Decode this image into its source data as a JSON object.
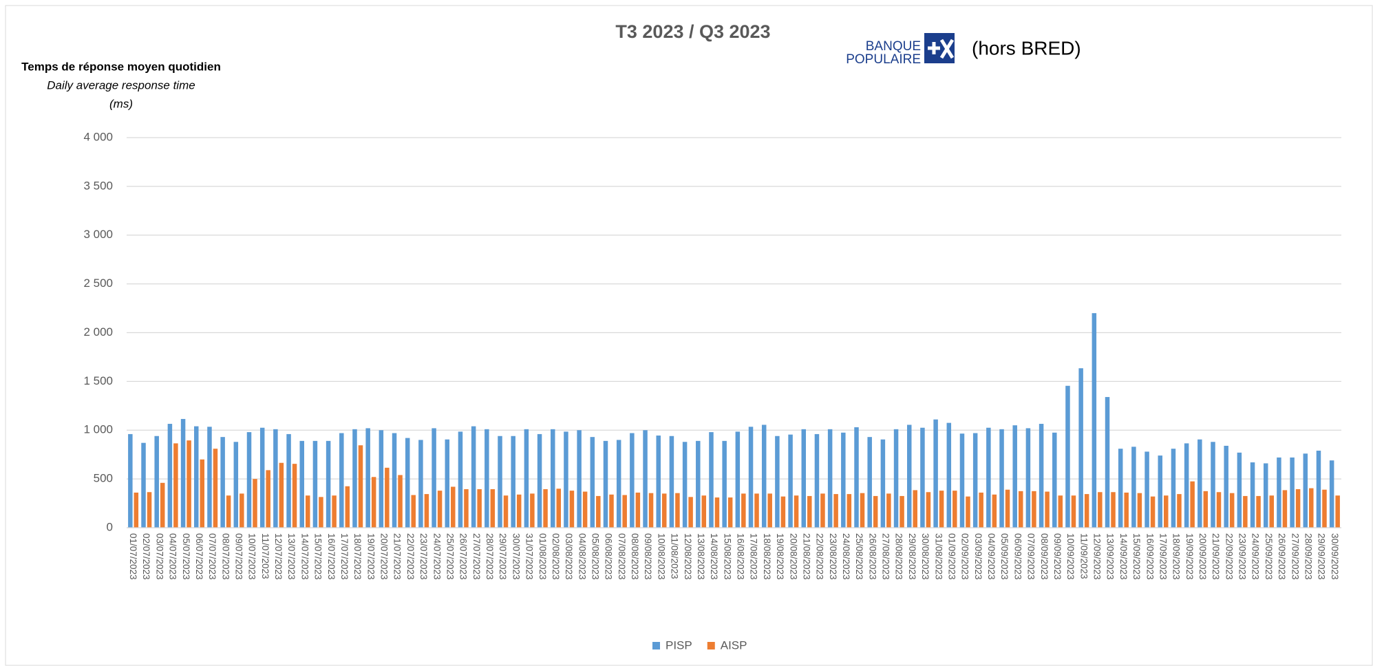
{
  "chart_data": {
    "type": "bar",
    "title": "T3 2023 / Q3 2023",
    "y_label": [
      "Temps de réponse moyen quotidien",
      "Daily average response time",
      "(ms)"
    ],
    "logo": {
      "line1": "BANQUE",
      "line2": "POPULAIRE"
    },
    "note": "(hors BRED)",
    "categories": [
      "01/07/2023",
      "02/07/2023",
      "03/07/2023",
      "04/07/2023",
      "05/07/2023",
      "06/07/2023",
      "07/07/2023",
      "08/07/2023",
      "09/07/2023",
      "10/07/2023",
      "11/07/2023",
      "12/07/2023",
      "13/07/2023",
      "14/07/2023",
      "15/07/2023",
      "16/07/2023",
      "17/07/2023",
      "18/07/2023",
      "19/07/2023",
      "20/07/2023",
      "21/07/2023",
      "22/07/2023",
      "23/07/2023",
      "24/07/2023",
      "25/07/2023",
      "26/07/2023",
      "27/07/2023",
      "28/07/2023",
      "29/07/2023",
      "30/07/2023",
      "31/07/2023",
      "01/08/2023",
      "02/08/2023",
      "03/08/2023",
      "04/08/2023",
      "05/08/2023",
      "06/08/2023",
      "07/08/2023",
      "08/08/2023",
      "09/08/2023",
      "10/08/2023",
      "11/08/2023",
      "12/08/2023",
      "13/08/2023",
      "14/08/2023",
      "15/08/2023",
      "16/08/2023",
      "17/08/2023",
      "18/08/2023",
      "19/08/2023",
      "20/08/2023",
      "21/08/2023",
      "22/08/2023",
      "23/08/2023",
      "24/08/2023",
      "25/08/2023",
      "26/08/2023",
      "27/08/2023",
      "28/08/2023",
      "29/08/2023",
      "30/08/2023",
      "31/08/2023",
      "01/09/2023",
      "02/09/2023",
      "03/09/2023",
      "04/09/2023",
      "05/09/2023",
      "06/09/2023",
      "07/09/2023",
      "08/09/2023",
      "09/09/2023",
      "10/09/2023",
      "11/09/2023",
      "12/09/2023",
      "13/09/2023",
      "14/09/2023",
      "15/09/2023",
      "16/09/2023",
      "17/09/2023",
      "18/09/2023",
      "19/09/2023",
      "20/09/2023",
      "21/09/2023",
      "22/09/2023",
      "23/09/2023",
      "24/09/2023",
      "25/09/2023",
      "26/09/2023",
      "27/09/2023",
      "28/09/2023",
      "29/09/2023",
      "30/09/2023"
    ],
    "series": [
      {
        "name": "PISP",
        "color": "#5b9bd5",
        "values": [
          960,
          870,
          940,
          1065,
          1115,
          1040,
          1035,
          930,
          880,
          980,
          1025,
          1010,
          960,
          890,
          890,
          890,
          970,
          1010,
          1020,
          1000,
          970,
          920,
          900,
          1020,
          905,
          985,
          1040,
          1010,
          940,
          940,
          1010,
          960,
          1010,
          985,
          1000,
          930,
          890,
          900,
          970,
          1000,
          945,
          940,
          880,
          890,
          980,
          890,
          985,
          1035,
          1055,
          940,
          955,
          1010,
          960,
          1010,
          975,
          1030,
          930,
          905,
          1010,
          1055,
          1025,
          1110,
          1075,
          965,
          970,
          1025,
          1010,
          1050,
          1020,
          1065,
          975,
          1455,
          1635,
          2200,
          1340,
          810,
          830,
          780,
          740,
          810,
          865,
          905,
          880,
          840,
          770,
          670,
          660,
          720,
          720,
          760,
          790,
          690
        ]
      },
      {
        "name": "AISP",
        "color": "#ed7d31",
        "values": [
          360,
          365,
          460,
          865,
          895,
          700,
          810,
          330,
          350,
          500,
          590,
          665,
          655,
          330,
          315,
          330,
          425,
          845,
          520,
          615,
          540,
          335,
          345,
          380,
          420,
          395,
          395,
          395,
          330,
          340,
          350,
          395,
          400,
          380,
          370,
          325,
          340,
          335,
          360,
          355,
          350,
          355,
          315,
          330,
          310,
          310,
          350,
          350,
          350,
          320,
          330,
          325,
          350,
          345,
          345,
          355,
          325,
          350,
          325,
          385,
          365,
          380,
          380,
          320,
          360,
          340,
          390,
          375,
          375,
          370,
          330,
          330,
          345,
          365,
          365,
          360,
          355,
          320,
          330,
          345,
          475,
          375,
          365,
          355,
          325,
          325,
          330,
          385,
          395,
          405,
          390,
          330
        ]
      }
    ],
    "ylim": [
      0,
      4000
    ],
    "yticks": [
      0,
      500,
      {
        "value": 1000,
        "label": "1 000"
      },
      {
        "value": 1500,
        "label": "1 500"
      },
      {
        "value": 2000,
        "label": "2 000"
      },
      {
        "value": 2500,
        "label": "2 500"
      },
      {
        "value": 3000,
        "label": "3 000"
      },
      {
        "value": 3500,
        "label": "3 500"
      },
      {
        "value": 4000,
        "label": "4 000"
      }
    ],
    "grid": true,
    "legend": "bottom"
  }
}
